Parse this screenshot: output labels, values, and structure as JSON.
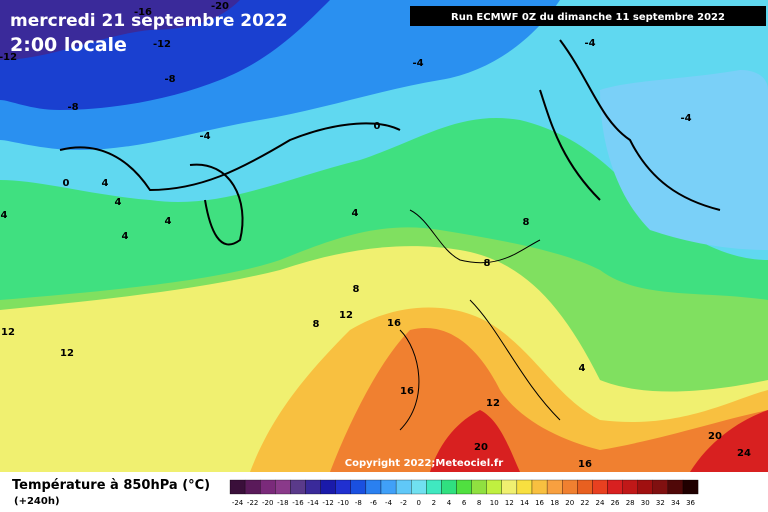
{
  "header": {
    "date": "mercredi 21 septembre 2022",
    "time": "2:00 locale",
    "run": "Run ECMWF 0Z du dimanche 11 septembre 2022"
  },
  "copyright": "Copyright 2022;Meteociel.fr",
  "legend": {
    "title": "Température à 850hPa (°C)",
    "lead": "(+240h)",
    "scale": [
      -24,
      -22,
      -20,
      -18,
      -16,
      -14,
      -12,
      -10,
      -8,
      -6,
      -4,
      -2,
      0,
      2,
      4,
      6,
      8,
      10,
      12,
      14,
      16,
      18,
      20,
      22,
      24,
      26,
      28,
      30,
      32,
      34,
      36
    ],
    "colors": [
      "#3a0f3a",
      "#5a1a5a",
      "#7a2a7a",
      "#8a3a8a",
      "#5a3a8a",
      "#3a2a9a",
      "#1a1aaa",
      "#2030d0",
      "#1a50e0",
      "#2a80f0",
      "#40a0f8",
      "#60c8f8",
      "#70e0f0",
      "#40e8c0",
      "#30e080",
      "#50e040",
      "#90e040",
      "#c0f040",
      "#f0f070",
      "#f8e040",
      "#f8c040",
      "#f8a040",
      "#f08030",
      "#e86020",
      "#e84020",
      "#d82020",
      "#c01818",
      "#a01010",
      "#801010",
      "#500808",
      "#200000"
    ]
  },
  "contour_labels": [
    -20,
    -16,
    -12,
    -12,
    -8,
    -8,
    -4,
    -4,
    -4,
    -4,
    0,
    0,
    4,
    4,
    4,
    4,
    4,
    4,
    8,
    8,
    8,
    8,
    12,
    12,
    12,
    12,
    16,
    16,
    4,
    20,
    16,
    20,
    24
  ]
}
